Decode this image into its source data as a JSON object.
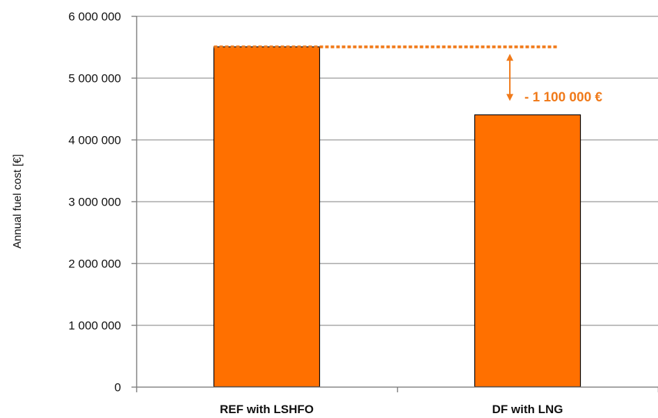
{
  "chart_data": {
    "type": "bar",
    "title": "",
    "xlabel": "",
    "ylabel": "Annual fuel cost [€]",
    "categories": [
      "REF with LSHFO",
      "DF with LNG"
    ],
    "values": [
      5500000,
      4400000
    ],
    "ylim": [
      0,
      6000000
    ],
    "yticks": [
      0,
      1000000,
      2000000,
      3000000,
      4000000,
      5000000,
      6000000
    ],
    "ytick_labels": [
      "0",
      "1 000 000",
      "2 000 000",
      "3 000 000",
      "4 000 000",
      "5 000 000",
      "6 000 000"
    ],
    "grid": true,
    "legend": "none",
    "annotation": {
      "text": "- 1 100 000 €",
      "reference_value": 5500000,
      "target_value": 4400000
    },
    "colors": {
      "bar": "#ff7000",
      "bar_edge": "#000000",
      "annotation": "#f07a1a",
      "grid": "#a6a6a6",
      "axis": "#808080"
    }
  }
}
